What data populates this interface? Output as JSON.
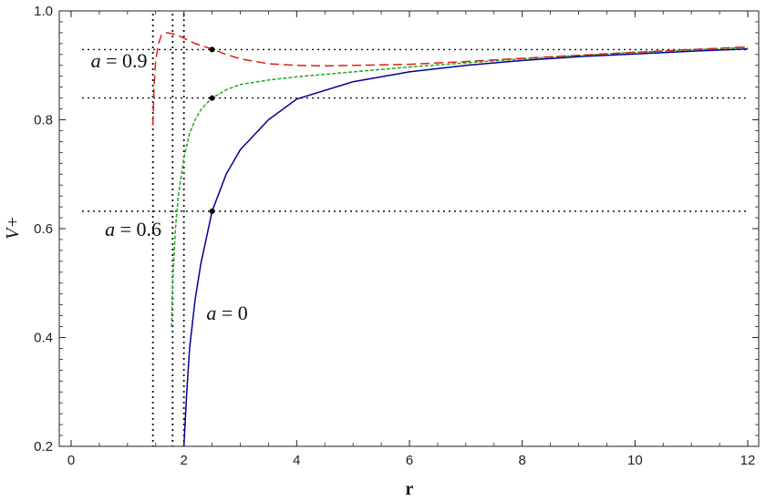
{
  "chart_data": {
    "type": "line",
    "title": "",
    "xlabel": "r",
    "ylabel": "V+",
    "xlim": [
      0,
      12
    ],
    "ylim": [
      0.2,
      1.0
    ],
    "xticks": [
      0,
      2,
      4,
      6,
      8,
      10,
      12
    ],
    "yticks": [
      0.2,
      0.4,
      0.6,
      0.8,
      1.0
    ],
    "xtick_labels": [
      "0",
      "2",
      "4",
      "6",
      "8",
      "10",
      "12"
    ],
    "ytick_labels": [
      "0.2",
      "0.4",
      "0.6",
      "0.8",
      "1.0"
    ],
    "grid": false,
    "series": [
      {
        "name": "a = 0",
        "color": "#000099",
        "dash": "solid",
        "x": [
          2.0,
          2.05,
          2.1,
          2.2,
          2.3,
          2.5,
          2.75,
          3.0,
          3.5,
          4.0,
          5.0,
          6.0,
          7.0,
          8.0,
          9.0,
          10.0,
          11.0,
          12.0
        ],
        "y": [
          0.2,
          0.3,
          0.38,
          0.47,
          0.535,
          0.632,
          0.7,
          0.745,
          0.8,
          0.838,
          0.87,
          0.888,
          0.9,
          0.909,
          0.916,
          0.921,
          0.926,
          0.93
        ]
      },
      {
        "name": "a = 0.6",
        "color": "#22aa22",
        "dash": "dashed",
        "x": [
          1.78,
          1.8,
          1.85,
          1.9,
          2.0,
          2.1,
          2.2,
          2.3,
          2.4,
          2.5,
          2.75,
          3.0,
          3.5,
          4.0,
          5.0,
          6.0,
          8.0,
          10.0,
          12.0
        ],
        "y": [
          0.42,
          0.5,
          0.6,
          0.66,
          0.73,
          0.775,
          0.8,
          0.818,
          0.83,
          0.84,
          0.855,
          0.865,
          0.873,
          0.879,
          0.888,
          0.897,
          0.912,
          0.924,
          0.933
        ]
      },
      {
        "name": "a = 0.9",
        "color": "#dd2211",
        "dash": "longdash",
        "x": [
          1.45,
          1.47,
          1.5,
          1.55,
          1.6,
          1.7,
          1.8,
          1.9,
          2.0,
          2.2,
          2.5,
          2.75,
          3.0,
          3.5,
          4.0,
          4.5,
          5.0,
          6.0,
          7.0,
          8.0,
          10.0,
          12.0
        ],
        "y": [
          0.79,
          0.86,
          0.91,
          0.94,
          0.955,
          0.96,
          0.958,
          0.955,
          0.95,
          0.94,
          0.93,
          0.92,
          0.912,
          0.903,
          0.9,
          0.899,
          0.9,
          0.902,
          0.907,
          0.913,
          0.924,
          0.934
        ]
      }
    ],
    "reference_lines": {
      "horizontal_y": [
        0.929,
        0.84,
        0.632
      ],
      "vertical_x": [
        1.45,
        1.8,
        2.0
      ]
    },
    "markers": [
      {
        "x": 2.5,
        "y": 0.929
      },
      {
        "x": 2.5,
        "y": 0.84
      },
      {
        "x": 2.5,
        "y": 0.632
      }
    ],
    "annotations": [
      {
        "text": "a = 0.9",
        "x": 0.35,
        "y": 0.896
      },
      {
        "text": "a = 0.6",
        "x": 0.6,
        "y": 0.587
      },
      {
        "text": "a = 0",
        "x": 2.4,
        "y": 0.433
      }
    ]
  }
}
